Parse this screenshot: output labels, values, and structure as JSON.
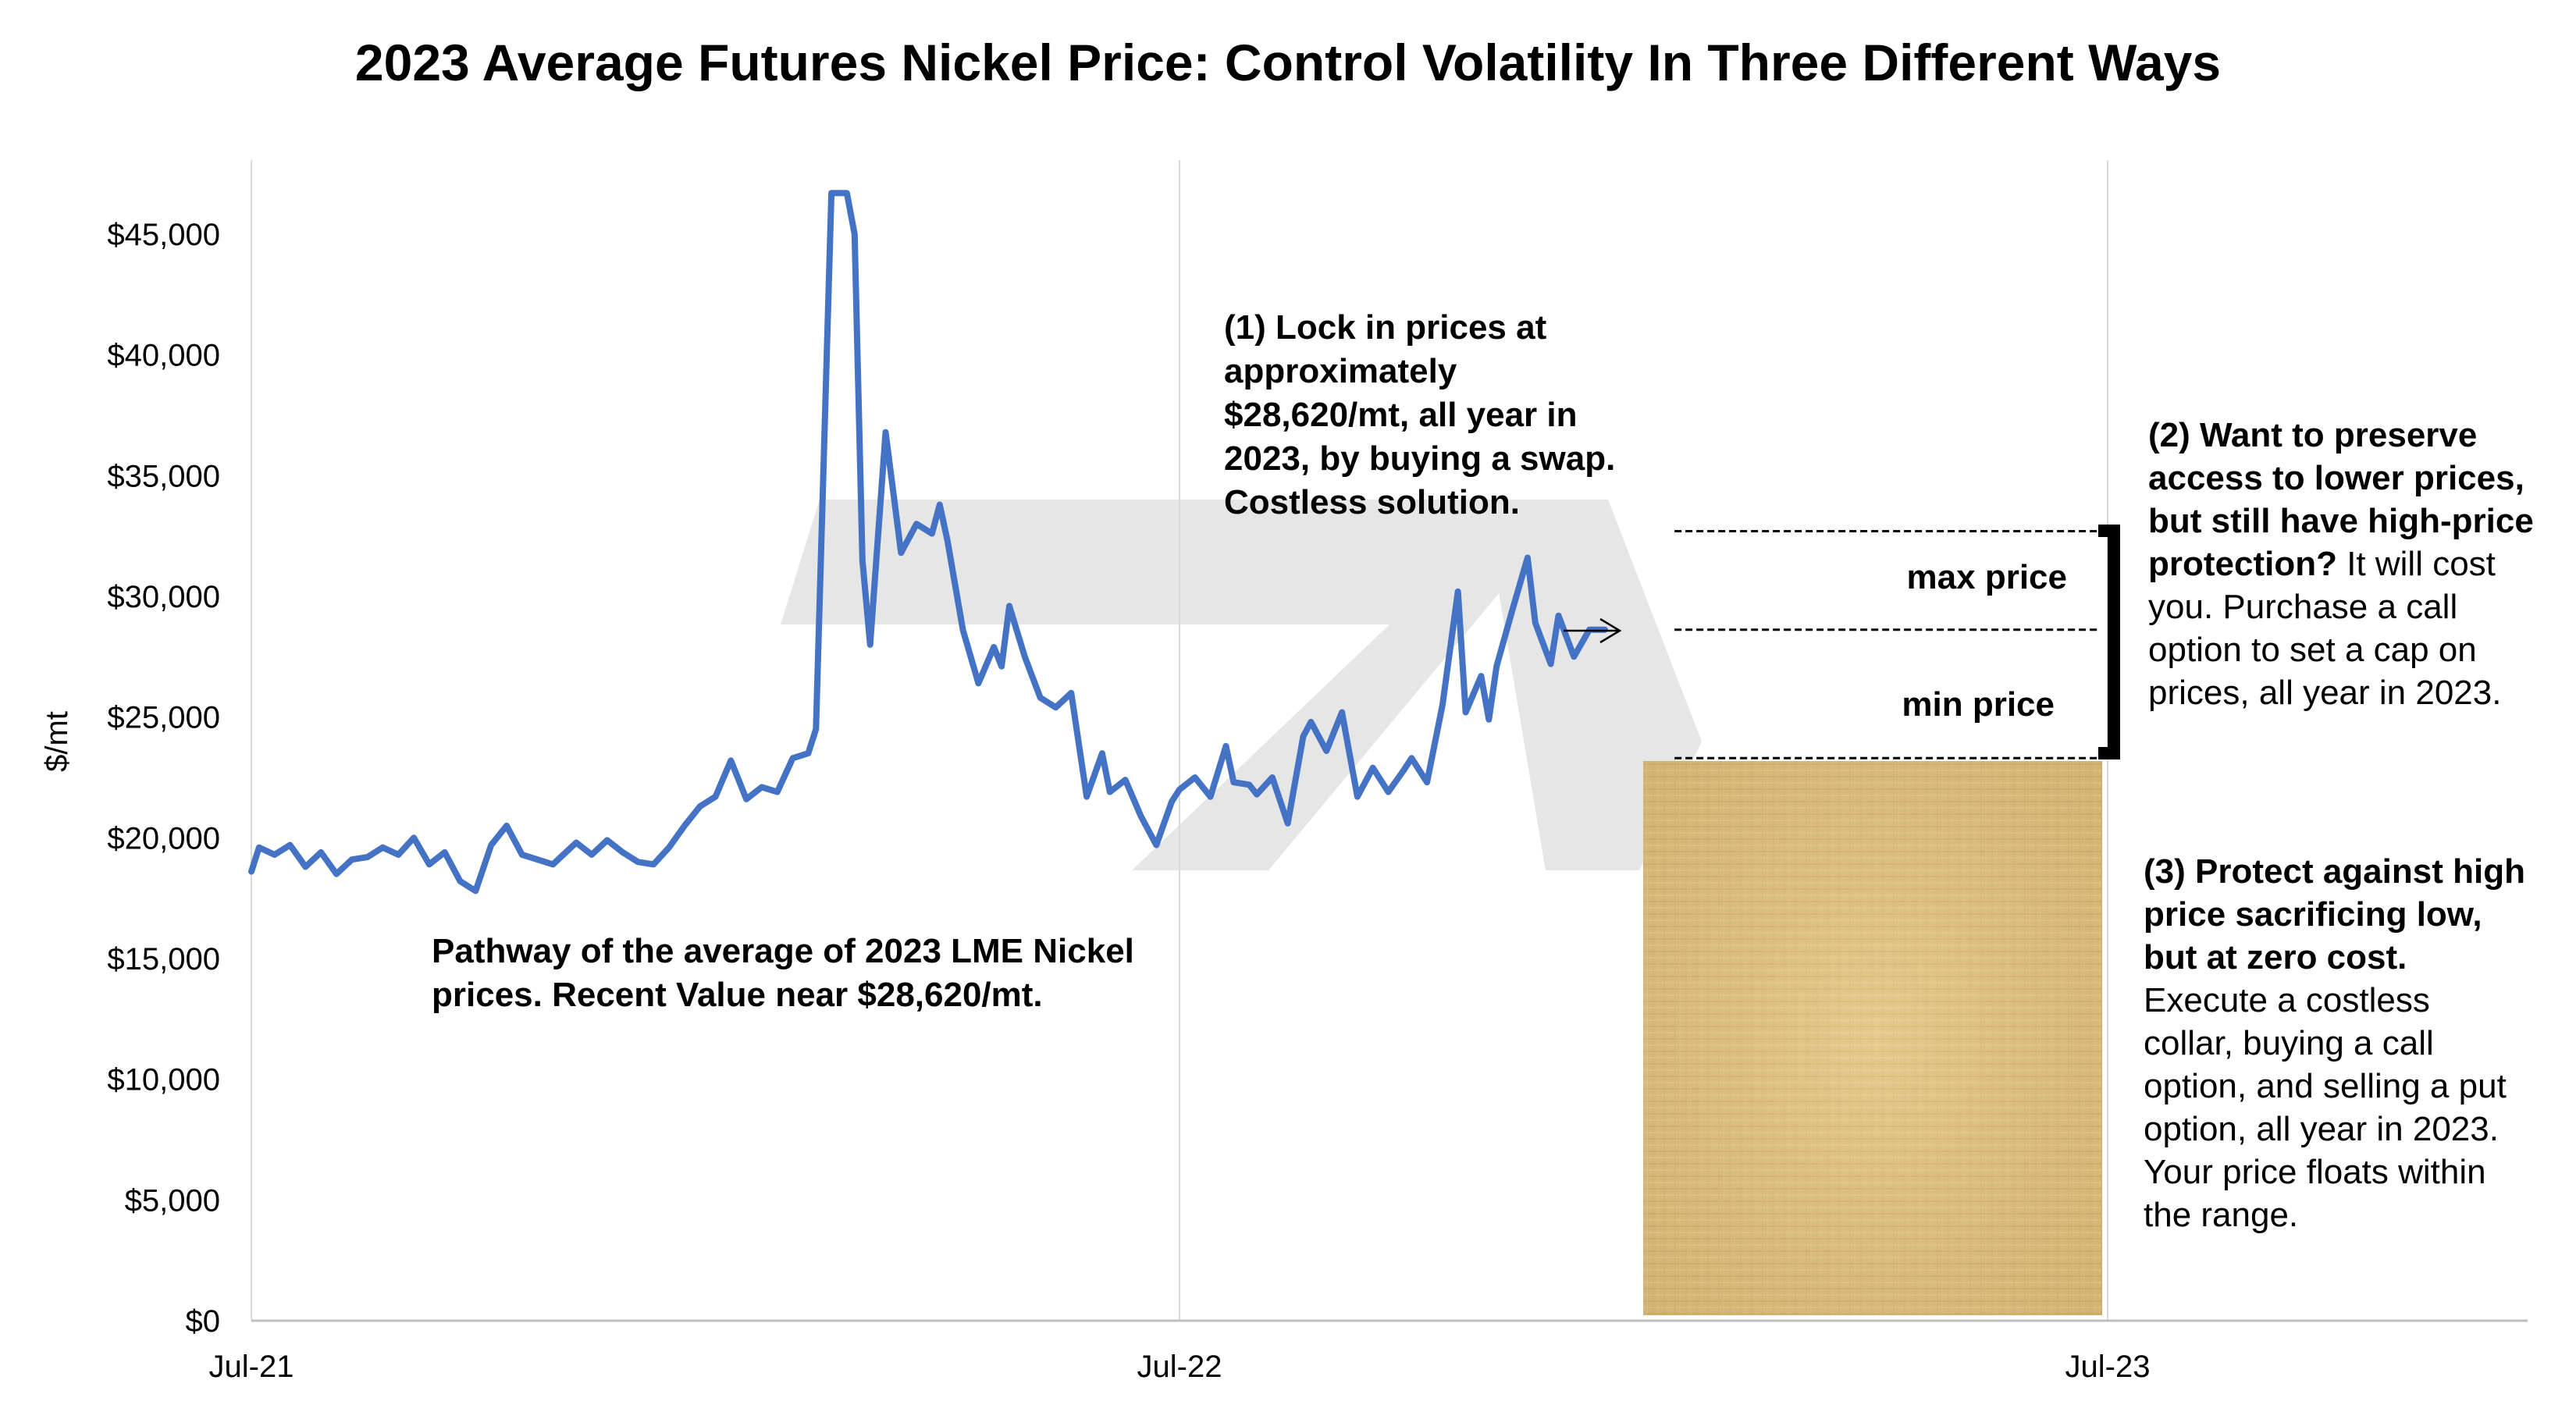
{
  "chart_data": {
    "type": "line",
    "title": "2023 Average Futures Nickel Price: Control Volatility In Three Different Ways",
    "ylabel": "$/mt",
    "xlabel": "",
    "ylim": [
      0,
      47000
    ],
    "yticks": [
      "$0",
      "$5,000",
      "$10,000",
      "$15,000",
      "$20,000",
      "$25,000",
      "$30,000",
      "$35,000",
      "$40,000",
      "$45,000"
    ],
    "xticks": [
      "Jul-21",
      "Jul-22",
      "Jul-23"
    ],
    "xtick_months": [
      0,
      12,
      24
    ],
    "grid": "vertical",
    "series": [
      {
        "color": "#4472C4",
        "x": [
          0,
          0.1,
          0.3,
          0.5,
          0.7,
          0.9,
          1.1,
          1.3,
          1.5,
          1.7,
          1.9,
          2.1,
          2.3,
          2.5,
          2.7,
          2.9,
          3.1,
          3.3,
          3.5,
          3.7,
          3.9,
          4.0,
          4.2,
          4.4,
          4.6,
          4.8,
          5.0,
          5.2,
          5.4,
          5.6,
          5.8,
          6.0,
          6.2,
          6.4,
          6.6,
          6.8,
          7.0,
          7.2,
          7.3,
          7.5,
          7.7,
          7.8,
          7.9,
          8.0,
          8.2,
          8.4,
          8.6,
          8.8,
          8.9,
          9.0,
          9.2,
          9.4,
          9.6,
          9.7,
          9.8,
          10.0,
          10.2,
          10.4,
          10.6,
          10.8,
          11.0,
          11.1,
          11.3,
          11.5,
          11.7,
          11.9,
          12.0,
          12.2,
          12.4,
          12.6,
          12.7,
          12.9,
          13.0,
          13.2,
          13.4,
          13.6,
          13.7,
          13.9,
          14.1,
          14.3,
          14.5,
          14.7,
          14.9,
          15.0,
          15.2,
          15.4,
          15.6,
          15.7,
          15.9,
          16.0,
          16.1,
          16.3,
          16.5,
          16.6,
          16.8,
          16.9,
          17.1,
          17.3,
          17.5
        ],
        "y": [
          18600,
          19600,
          19300,
          19700,
          18800,
          19400,
          18500,
          19100,
          19200,
          19600,
          19300,
          20000,
          18900,
          19400,
          18200,
          17800,
          19700,
          20500,
          19300,
          19100,
          18900,
          19200,
          19800,
          19300,
          19900,
          19400,
          19000,
          18900,
          19600,
          20500,
          21300,
          21700,
          23200,
          21600,
          22100,
          21900,
          23300,
          23500,
          24500,
          46700,
          46700,
          45000,
          31500,
          28000,
          36800,
          31800,
          33000,
          32600,
          33800,
          32300,
          28600,
          26400,
          27900,
          27100,
          29600,
          27500,
          25800,
          25400,
          26000,
          21700,
          23500,
          21900,
          22400,
          20900,
          19700,
          21500,
          22000,
          22500,
          21700,
          23800,
          22300,
          22200,
          21800,
          22500,
          20600,
          24200,
          24800,
          23600,
          25200,
          21700,
          22900,
          21900,
          22800,
          23300,
          22300,
          25500,
          30200,
          25200,
          26700,
          24900,
          27100,
          29400,
          31600,
          28900,
          27200,
          29200,
          27500,
          28620,
          28620
        ]
      }
    ],
    "projection": {
      "value": 28620,
      "max_price": 32700,
      "min_price": 23300,
      "x_start": 18.4,
      "x_end": 23.9
    },
    "annotations": {
      "swap": "(1) Lock in prices at approximately $28,620/mt, all year in 2023, by buying a swap. Costless solution.",
      "max_label": "max price",
      "min_label": "min price",
      "call_bold": "(2) Want to preserve access to lower prices, but still have high-price protection?",
      "call_rest": "It will cost you. Purchase a call option to set a cap on prices, all year in 2023.",
      "collar_bold": "(3) Protect against high price sacrificing low, but at zero cost.",
      "collar_rest": "Execute a costless collar, buying a call option, and selling a put option, all year in 2023. Your price floats within the range.",
      "pathway": "Pathway of the average of 2023 LME Nickel prices. Recent Value near $28,620/mt."
    },
    "colors": {
      "line": "#4472C4",
      "grid": "#D9D9D9",
      "axis": "#BFBFBF",
      "watermark": "#E6E6E6",
      "parchment": "#DDBF80"
    }
  }
}
